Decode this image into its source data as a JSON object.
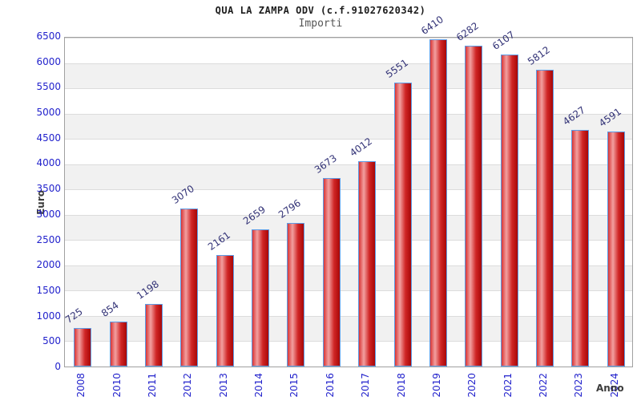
{
  "chart_data": {
    "type": "bar",
    "title": "QUA LA ZAMPA ODV (c.f.91027620342)",
    "subtitle": "Importi",
    "xlabel": "Anno",
    "ylabel": "Euro",
    "categories": [
      "2008",
      "2010",
      "2011",
      "2012",
      "2013",
      "2014",
      "2015",
      "2016",
      "2017",
      "2018",
      "2019",
      "2020",
      "2021",
      "2022",
      "2023",
      "2024"
    ],
    "values": [
      725,
      854,
      1198,
      3070,
      2161,
      2659,
      2796,
      3673,
      4012,
      5551,
      6410,
      6282,
      6107,
      5812,
      4627,
      4591
    ],
    "ylim": [
      0,
      6500
    ],
    "ytick_step": 500,
    "legend": "none",
    "grid": "horizontal-bands-alternating",
    "value_labels": "rotated-above-bars",
    "colors": {
      "bar_gradient": [
        "#d93535",
        "#f2a0a0",
        "#d02525",
        "#a80808"
      ],
      "bar_border": "#5d9ce6",
      "tick_label": "#2222cc",
      "value_label": "#333377",
      "title_color": "#1c1c1c",
      "subtitle_color": "#555555",
      "axis_label": "#3c3c3c",
      "band_alt": "#f1f1f1",
      "gridline": "#dcdcdc",
      "plot_border": "#a0a0a0"
    }
  }
}
